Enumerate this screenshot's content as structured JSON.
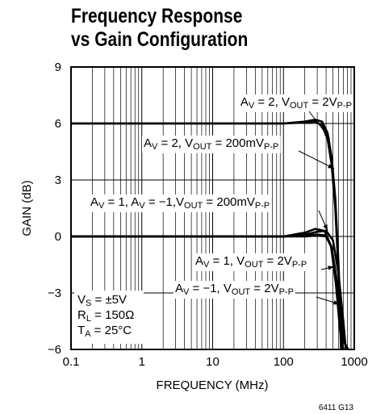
{
  "chart_data": {
    "type": "line",
    "title": [
      "Frequency Response",
      "vs Gain Configuration"
    ],
    "xlabel": "FREQUENCY (MHz)",
    "ylabel": "GAIN (dB)",
    "xscale": "log",
    "xlim": [
      0.1,
      1000
    ],
    "ylim": [
      -6,
      9
    ],
    "xticks": [
      {
        "value": 0.1,
        "label": "0.1"
      },
      {
        "value": 1,
        "label": "1"
      },
      {
        "value": 10,
        "label": "10"
      },
      {
        "value": 100,
        "label": "100"
      },
      {
        "value": 1000,
        "label": "1000"
      }
    ],
    "yticks": [
      {
        "value": 9,
        "label": "9"
      },
      {
        "value": 6,
        "label": "6"
      },
      {
        "value": 3,
        "label": "3"
      },
      {
        "value": 0,
        "label": "0"
      },
      {
        "value": -3,
        "label": "−3"
      },
      {
        "value": -6,
        "label": "−6"
      }
    ],
    "grid": true,
    "series": [
      {
        "id": "av2-2vpp",
        "x": [
          0.1,
          100,
          200,
          280,
          350,
          420,
          480,
          540,
          600,
          660
        ],
        "y": [
          6,
          6,
          6.1,
          6.2,
          6.1,
          5.5,
          4.2,
          2,
          -1.5,
          -6
        ]
      },
      {
        "id": "av2-200mv",
        "x": [
          0.1,
          100,
          200,
          280,
          350,
          420,
          480,
          540,
          600,
          650
        ],
        "y": [
          6,
          6,
          6.05,
          6.1,
          5.9,
          5.2,
          3.8,
          1.5,
          -2,
          -6
        ]
      },
      {
        "id": "av1-2vpp",
        "x": [
          0.1,
          100,
          200,
          300,
          400,
          470,
          530,
          600,
          700,
          800
        ],
        "y": [
          0,
          0,
          0.05,
          0.1,
          0.05,
          -0.5,
          -1.8,
          -3.5,
          -5.5,
          -6
        ]
      },
      {
        "id": "avm1-2vpp",
        "x": [
          0.1,
          100,
          200,
          300,
          400,
          480,
          550,
          630,
          720,
          820
        ],
        "y": [
          0,
          0,
          0,
          0.05,
          0,
          -0.6,
          -2,
          -3.8,
          -5.6,
          -6
        ]
      },
      {
        "id": "av1-200mv",
        "x": [
          0.1,
          100,
          200,
          280,
          380,
          470,
          550,
          630,
          700
        ],
        "y": [
          0,
          0,
          0.2,
          0.4,
          0.3,
          -0.5,
          -2.5,
          -5,
          -6
        ]
      },
      {
        "id": "avm1-200mv",
        "x": [
          0.1,
          100,
          200,
          300,
          400,
          500,
          600,
          700,
          760
        ],
        "y": [
          0,
          0,
          0.1,
          0.25,
          0.3,
          -0.2,
          -2,
          -4.5,
          -6
        ]
      }
    ],
    "annotations": [
      {
        "id": "ann-av2-2vpp",
        "parts": [
          [
            "A",
            "n"
          ],
          [
            "V",
            "s"
          ],
          [
            " = 2, V",
            "n"
          ],
          [
            "OUT",
            "s"
          ],
          [
            " = 2V",
            "n"
          ],
          [
            "P-P",
            "s"
          ]
        ],
        "arrow_to": {
          "x": 450,
          "y": 5.2
        }
      },
      {
        "id": "ann-av2-200mv",
        "parts": [
          [
            "A",
            "n"
          ],
          [
            "V",
            "s"
          ],
          [
            " = 2, V",
            "n"
          ],
          [
            "OUT",
            "s"
          ],
          [
            " = 200mV",
            "n"
          ],
          [
            "P-P",
            "s"
          ]
        ],
        "arrow_to": {
          "x": 520,
          "y": 3.6
        }
      },
      {
        "id": "ann-av1-200mv",
        "parts": [
          [
            "A",
            "n"
          ],
          [
            "V",
            "s"
          ],
          [
            " = 1, A",
            "n"
          ],
          [
            "V",
            "s"
          ],
          [
            " = −1,V",
            "n"
          ],
          [
            "OUT",
            "s"
          ],
          [
            " = 200mV",
            "n"
          ],
          [
            "P-P",
            "s"
          ]
        ],
        "arrow_to": {
          "x": 420,
          "y": 0.3
        }
      },
      {
        "id": "ann-av1-2vpp",
        "parts": [
          [
            "A",
            "n"
          ],
          [
            "V",
            "s"
          ],
          [
            " = 1, V",
            "n"
          ],
          [
            "OUT",
            "s"
          ],
          [
            " = 2V",
            "n"
          ],
          [
            "P-P",
            "s"
          ]
        ],
        "arrow_to": {
          "x": 520,
          "y": -1.6
        }
      },
      {
        "id": "ann-avm1-2vpp",
        "parts": [
          [
            "A",
            "n"
          ],
          [
            "V",
            "s"
          ],
          [
            " = −1, V",
            "n"
          ],
          [
            "OUT",
            "s"
          ],
          [
            " = 2V",
            "n"
          ],
          [
            "P-P",
            "s"
          ]
        ],
        "arrow_to": {
          "x": 620,
          "y": -3.6
        }
      }
    ],
    "conditions": [
      [
        [
          "V",
          "n"
        ],
        [
          "S",
          "s"
        ],
        [
          " = ±5V",
          "n"
        ]
      ],
      [
        [
          "R",
          "n"
        ],
        [
          "L",
          "s"
        ],
        [
          " = 150Ω",
          "n"
        ]
      ],
      [
        [
          "T",
          "n"
        ],
        [
          "A",
          "s"
        ],
        [
          " = 25°C",
          "n"
        ]
      ]
    ],
    "figure_id": "6411 G13",
    "line_color": "#000000"
  }
}
